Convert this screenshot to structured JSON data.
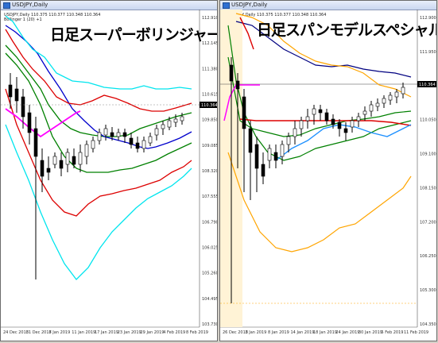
{
  "left": {
    "window_title": "USDJPY,Daily",
    "header": "USDJPY,Daily  110.375 110.377 110.348 110.364",
    "subheader": "Bollinger 1 (20) +1",
    "overlay_title": "日足スーパーボリンジャー",
    "price_label": "110.364",
    "y_labels": [
      "112.910",
      "112.145",
      "111.380",
      "110.615",
      "109.850",
      "109.085",
      "108.320",
      "107.555",
      "106.790",
      "106.025",
      "105.260",
      "104.495",
      "103.730"
    ],
    "x_labels": [
      "24 Dec 2018",
      "31 Dec 2018",
      "7 Jan 2019",
      "11 Jan 2019",
      "17 Jan 2019",
      "23 Jan 2019",
      "29 Jan 2019",
      "4 Feb 2019",
      "8 Feb 2019"
    ]
  },
  "right": {
    "window_title": "USDJPY,Daily",
    "header": "USDJPY,Daily  110.375 110.377 110.348 110.364",
    "overlay_title": "日足スパンモデルスペシャル",
    "price_label": "110.364",
    "y_labels": [
      "112.900",
      "111.950",
      "111.000",
      "110.050",
      "109.100",
      "108.150",
      "107.200",
      "106.250",
      "105.300",
      "104.350"
    ],
    "x_labels": [
      "26 Dec 2018",
      "3 Jan 2019",
      "8 Jan 2019",
      "14 Jan 2019",
      "18 Jan 2019",
      "24 Jan 2019",
      "30 Jan 2019",
      "5 Feb 2019",
      "11 Feb 2019"
    ]
  },
  "colors": {
    "bull": "#ffffff",
    "bear": "#000000",
    "mid_band": "#0000cc",
    "band1": "#008000",
    "band2": "#dd0000",
    "band3": "#00e5ee",
    "chikou": "#ff00ff",
    "span_orange": "#ffa500",
    "span_blue": "#1e90ff",
    "span_navy": "#000080"
  }
}
